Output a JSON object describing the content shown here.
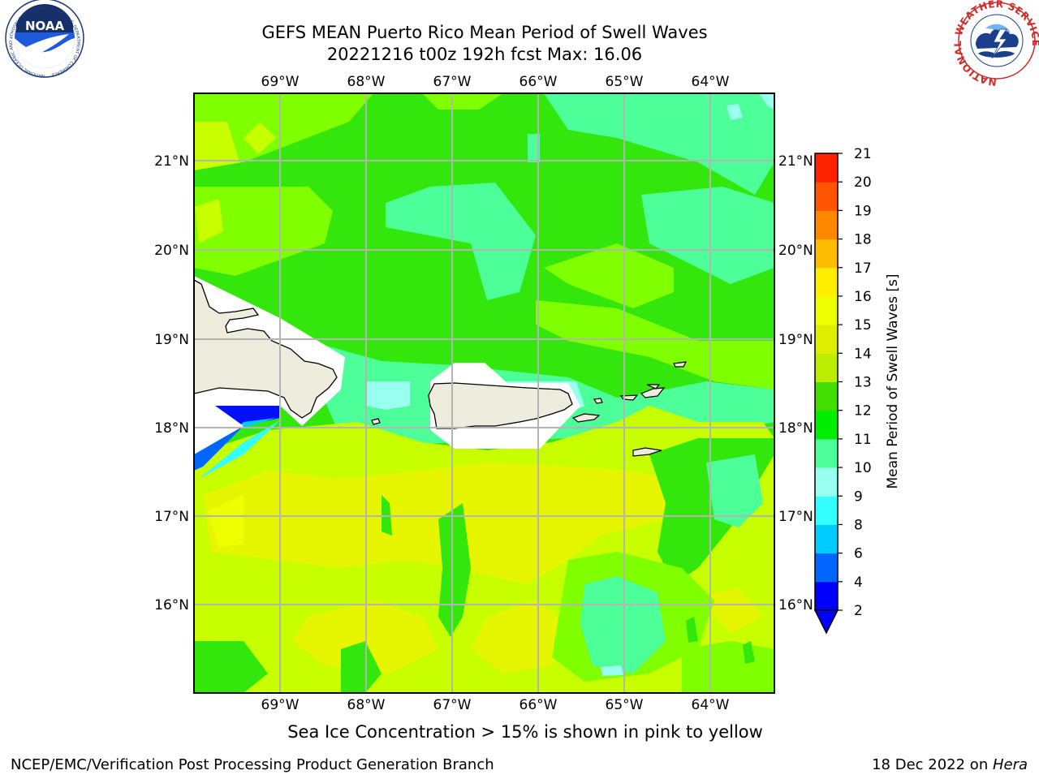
{
  "title": {
    "line1": "GEFS MEAN Puerto Rico Mean Period of Swell Waves",
    "line2": "20221216 t00z 192h fcst   Max: 16.06"
  },
  "map": {
    "lon_labels": [
      "69°W",
      "68°W",
      "67°W",
      "66°W",
      "65°W",
      "64°W"
    ],
    "lat_labels": [
      "21°N",
      "20°N",
      "19°N",
      "18°N",
      "17°N",
      "16°N"
    ],
    "colors": {
      "land": "#eeecdc",
      "grid": "#b4b4b4",
      "field_green": "#33e60c",
      "field_lime": "#80ff00",
      "field_yellow_green": "#c8ff00",
      "field_yellow": "#e6f500",
      "field_mint": "#4dff99",
      "field_lightcyan": "#99ffee",
      "field_blue": "#0010ff"
    }
  },
  "colorbar": {
    "label": "Mean Period of Swell Waves [s]",
    "ticks": [
      "2",
      "4",
      "6",
      "8",
      "9",
      "10",
      "11",
      "12",
      "13",
      "14",
      "15",
      "16",
      "17",
      "18",
      "19",
      "20",
      "21"
    ],
    "colors": [
      "#0000ff",
      "#0066ff",
      "#00ccff",
      "#33ffff",
      "#99ffee",
      "#4dff99",
      "#00ee00",
      "#44dd00",
      "#bbee00",
      "#ddee00",
      "#eeff00",
      "#ffee00",
      "#ffbb00",
      "#ff8800",
      "#ff5500",
      "#ff2200"
    ]
  },
  "caption": "Sea Ice Concentration > 15% is shown in pink to yellow",
  "footer": {
    "left": "NCEP/EMC/Verification Post Processing Product Generation Branch",
    "date": "18 Dec 2022 on ",
    "machine": "Hera"
  },
  "logos": {
    "noaa_text": "NOAA",
    "noaa_ring": "NATIONAL OCEANIC AND ATMOSPHERIC ADMINISTRATION · U.S. DEPARTMENT OF COMMERCE",
    "nws_ring": "NATIONAL WEATHER SERVICE"
  }
}
